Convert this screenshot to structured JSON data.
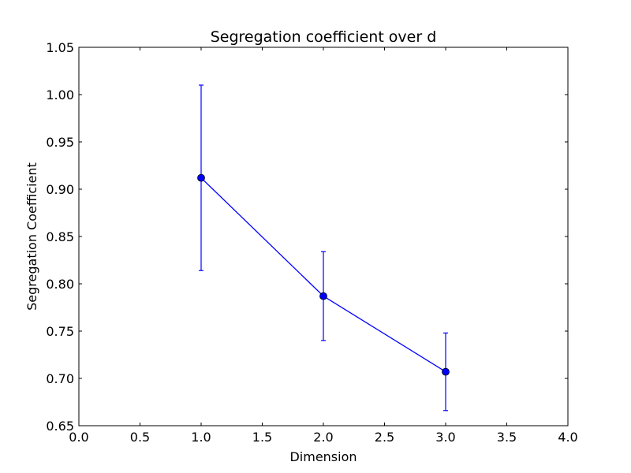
{
  "chart_data": {
    "type": "line",
    "title": "Segregation coefficient over d",
    "xlabel": "Dimension",
    "ylabel": "Segregation Coefficient",
    "xlim": [
      0.0,
      4.0
    ],
    "ylim": [
      0.65,
      1.05
    ],
    "xticks": [
      "0.0",
      "0.5",
      "1.0",
      "1.5",
      "2.0",
      "2.5",
      "3.0",
      "3.5",
      "4.0"
    ],
    "yticks": [
      "0.65",
      "0.70",
      "0.75",
      "0.80",
      "0.85",
      "0.90",
      "0.95",
      "1.00",
      "1.05"
    ],
    "grid": false,
    "legend": "none",
    "series": [
      {
        "color": "#0000ff",
        "marker": "circle",
        "x": [
          1.0,
          2.0,
          3.0
        ],
        "y": [
          0.912,
          0.787,
          0.707
        ],
        "error": [
          0.098,
          0.047,
          0.041
        ]
      }
    ]
  }
}
